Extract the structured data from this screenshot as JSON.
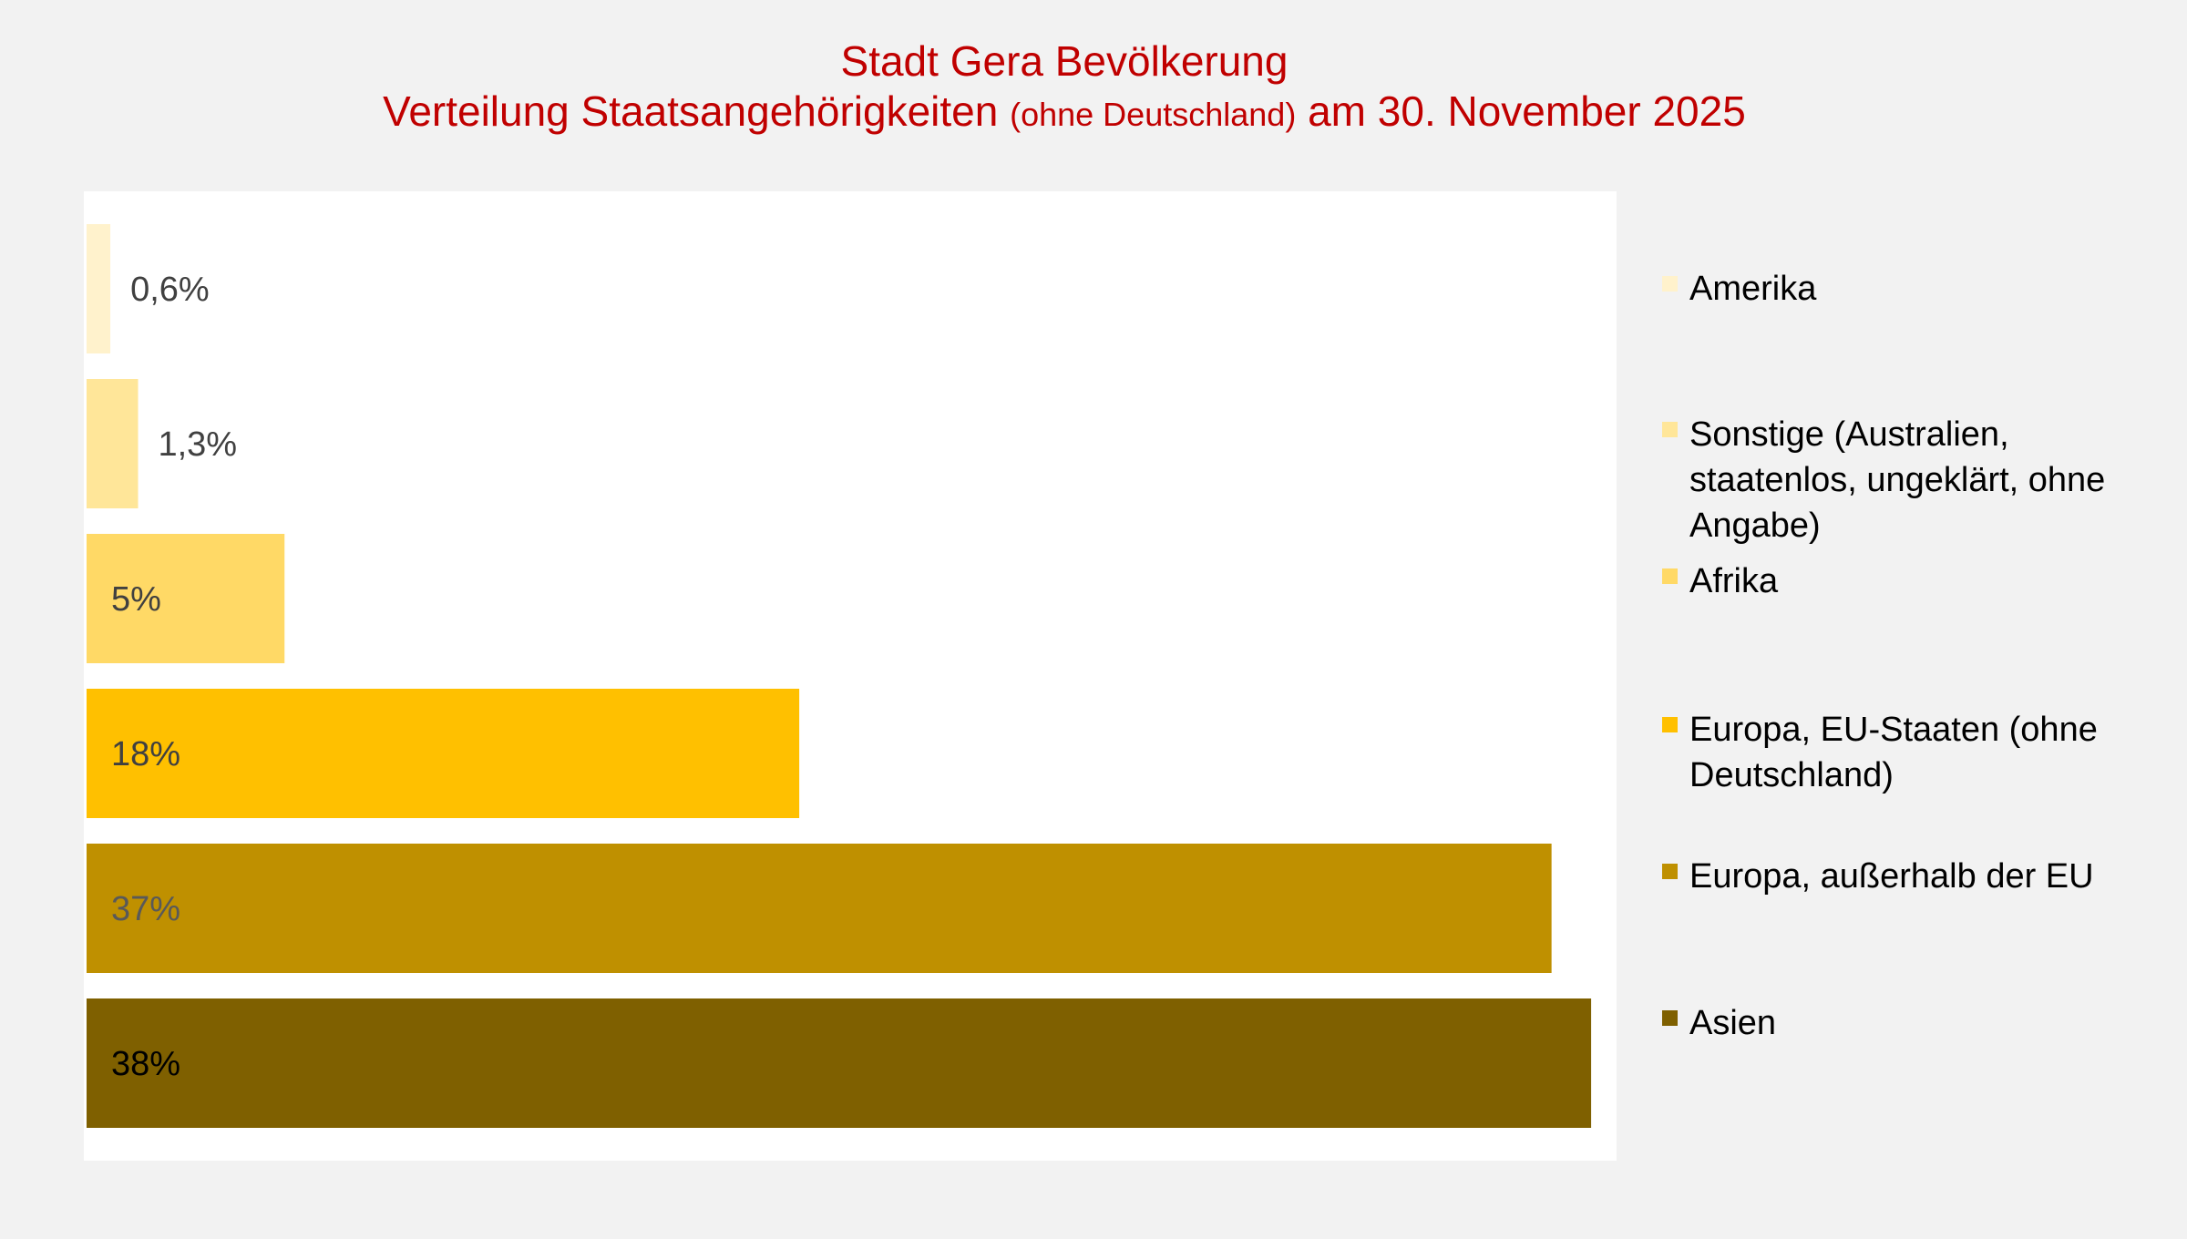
{
  "title": {
    "line1": "Stadt Gera Bevölkerung",
    "line2_main": "Verteilung Staatsangehörigkeiten",
    "line2_small": "(ohne Deutschland)",
    "line2_tail": "am 30. November 2025"
  },
  "chart_data": {
    "type": "bar",
    "orientation": "horizontal",
    "title": "Stadt Gera Bevölkerung – Verteilung Staatsangehörigkeiten (ohne Deutschland) am 30. November 2025",
    "xlabel": "",
    "ylabel": "",
    "xlim": [
      0,
      38
    ],
    "grid": false,
    "legend_position": "right",
    "categories": [
      "Amerika",
      "Sonstige (Australien, staatenlos, ungeklärt, ohne Angabe)",
      "Afrika",
      "Europa, EU-Staaten (ohne Deutschland)",
      "Europa, außerhalb der EU",
      "Asien"
    ],
    "values": [
      0.6,
      1.3,
      5,
      18,
      37,
      38
    ],
    "data_labels": [
      "0,6%",
      "1,3%",
      "5%",
      "18%",
      "37%",
      "38%"
    ],
    "colors": [
      "#fff2cc",
      "#ffe699",
      "#ffd966",
      "#ffc000",
      "#bf9000",
      "#7f6000"
    ],
    "label_colors": [
      "#404040",
      "#404040",
      "#404040",
      "#404040",
      "#595959",
      "#000000"
    ]
  },
  "legend": {
    "items": [
      {
        "label": "Amerika",
        "color": "#fff2cc"
      },
      {
        "label": "Sonstige (Australien, staatenlos, ungeklärt, ohne Angabe)",
        "color": "#ffe699"
      },
      {
        "label": "Afrika",
        "color": "#ffd966"
      },
      {
        "label": "Europa, EU-Staaten (ohne Deutschland)",
        "color": "#ffc000"
      },
      {
        "label": "Europa, außerhalb der EU",
        "color": "#bf9000"
      },
      {
        "label": "Asien",
        "color": "#7f6000"
      }
    ]
  }
}
